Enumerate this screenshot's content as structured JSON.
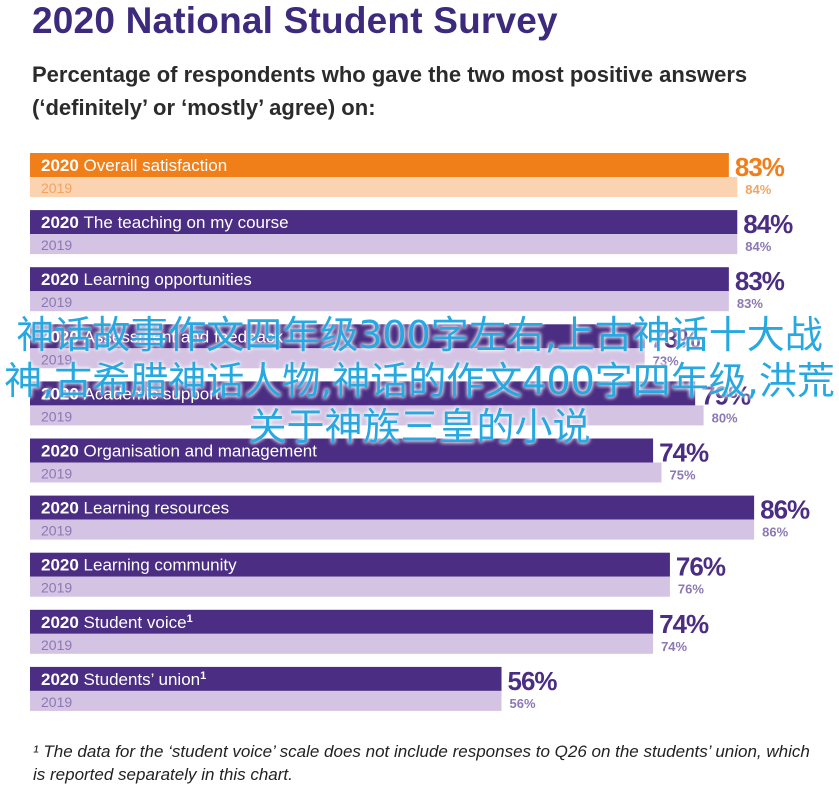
{
  "title": "2020 National Student Survey",
  "subtitle": "Percentage of respondents who gave the two most positive answers (‘definitely’ or ‘mostly’ agree) on:",
  "footnote": "¹ The data for the ‘student voice’ scale does not include responses to Q26 on the students’ union, which is reported separately in this chart.",
  "overlay_text": "神话故事作文四年级300字左右,上古神话十大战神,古希腊神话人物,神话的作文400字四年级,洪荒关于神族三皇的小说",
  "colors": {
    "accent_2020": "#f07f1a",
    "accent_2019": "#fbd3b0",
    "series_2020": "#4b2d83",
    "series_2019": "#d4c3e3",
    "label_2019": "#8b78b4",
    "label_2019_accent": "#f3a45e"
  },
  "chart_data": {
    "type": "bar",
    "orientation": "horizontal",
    "unit": "%",
    "xlim": [
      0,
      100
    ],
    "series_names": [
      "2020",
      "2019"
    ],
    "categories": [
      {
        "name": "Overall satisfaction",
        "sup": "",
        "v2020": 83,
        "v2019": 84
      },
      {
        "name": "The teaching on my course",
        "sup": "",
        "v2020": 84,
        "v2019": 84
      },
      {
        "name": "Learning opportunities",
        "sup": "",
        "v2020": 83,
        "v2019": 83
      },
      {
        "name": "Assessment and feedback",
        "sup": "",
        "v2020": 73,
        "v2019": 73
      },
      {
        "name": "Academic support",
        "sup": "",
        "v2020": 79,
        "v2019": 80
      },
      {
        "name": "Organisation and management",
        "sup": "",
        "v2020": 74,
        "v2019": 75
      },
      {
        "name": "Learning resources",
        "sup": "",
        "v2020": 86,
        "v2019": 86
      },
      {
        "name": "Learning community",
        "sup": "",
        "v2020": 76,
        "v2019": 76
      },
      {
        "name": "Student voice",
        "sup": "1",
        "v2020": 74,
        "v2019": 74
      },
      {
        "name": "Students’ union",
        "sup": "1",
        "v2020": 56,
        "v2019": 56
      }
    ]
  }
}
